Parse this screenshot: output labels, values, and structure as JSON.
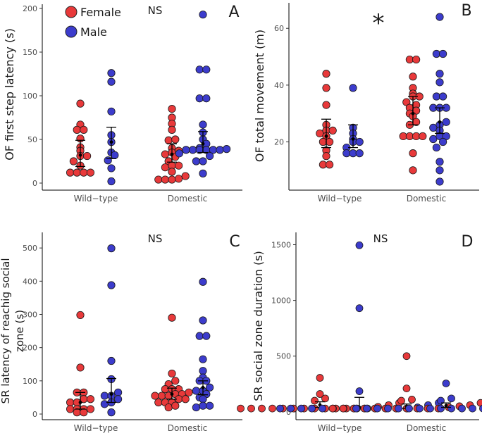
{
  "legend": {
    "female_label": "Female",
    "male_label": "Male"
  },
  "colors": {
    "female": "#e8393a",
    "male": "#3c3ccc",
    "axis": "#000000"
  },
  "chart_data": [
    {
      "panel": "A",
      "type": "scatter",
      "significance": "NS",
      "ylabel": "OF first step latency (s)",
      "ylim": [
        0,
        200
      ],
      "yticks": [
        0,
        50,
        100,
        150,
        200
      ],
      "categories": [
        "Wild−type",
        "Domestic"
      ],
      "groups": [
        {
          "category": "Wild−type",
          "sex": "Female",
          "mean": 32,
          "ci": [
            19,
            49
          ],
          "values": [
            91,
            67,
            61,
            61,
            51,
            41,
            37,
            31,
            31,
            25,
            20,
            12,
            12,
            12,
            12
          ]
        },
        {
          "category": "Wild−type",
          "sex": "Male",
          "mean": 47,
          "ci": [
            28,
            64
          ],
          "values": [
            126,
            116,
            82,
            55,
            47,
            35,
            32,
            26,
            17,
            2
          ]
        },
        {
          "category": "Domestic",
          "sex": "Female",
          "mean": 33,
          "ci": [
            24,
            45
          ],
          "values": [
            85,
            75,
            68,
            61,
            50,
            49,
            40,
            37,
            35,
            33,
            30,
            25,
            20,
            20,
            18,
            13,
            8,
            5,
            4,
            4,
            4
          ]
        },
        {
          "category": "Domestic",
          "sex": "Male",
          "mean": 45,
          "ci": [
            35,
            59
          ],
          "values": [
            193,
            130,
            130,
            97,
            97,
            67,
            58,
            50,
            45,
            40,
            39,
            38,
            38,
            38,
            38,
            38,
            38,
            34,
            31,
            25,
            25,
            11
          ]
        }
      ]
    },
    {
      "panel": "B",
      "type": "scatter",
      "significance": "*",
      "ylabel": "OF total movement (m)",
      "ylim": [
        5,
        67
      ],
      "yticks": [
        20,
        40,
        60
      ],
      "categories": [
        "Wild−type",
        "Domestic"
      ],
      "groups": [
        {
          "category": "Wild−type",
          "sex": "Female",
          "mean": 22,
          "ci": [
            18,
            28
          ],
          "values": [
            44,
            39,
            33,
            26,
            24,
            24,
            23,
            22,
            20,
            20,
            17,
            15,
            12,
            12
          ]
        },
        {
          "category": "Wild−type",
          "sex": "Male",
          "mean": 21,
          "ci": [
            18,
            26
          ],
          "values": [
            39,
            25,
            23,
            21,
            20,
            20,
            18,
            16,
            16,
            16
          ]
        },
        {
          "category": "Domestic",
          "sex": "Female",
          "mean": 30,
          "ci": [
            26,
            36
          ],
          "values": [
            49,
            49,
            43,
            39,
            37,
            36,
            36,
            34,
            33,
            32,
            31,
            30,
            29,
            27,
            26,
            22,
            22,
            22,
            22,
            16,
            10
          ]
        },
        {
          "category": "Domestic",
          "sex": "Male",
          "mean": 27,
          "ci": [
            23,
            32
          ],
          "values": [
            64,
            51,
            51,
            44,
            41,
            36,
            36,
            32,
            32,
            32,
            27,
            26,
            25,
            24,
            22,
            22,
            21,
            20,
            18,
            13,
            10,
            6
          ]
        }
      ]
    },
    {
      "panel": "C",
      "type": "scatter",
      "significance": "NS",
      "ylabel_lines": [
        "SR latency of reachig social",
        "zone (s)"
      ],
      "ylim": [
        0,
        530
      ],
      "yticks": [
        0,
        100,
        200,
        300,
        400,
        500
      ],
      "categories": [
        "Wild−type",
        "Domestic"
      ],
      "groups": [
        {
          "category": "Wild−type",
          "sex": "Female",
          "mean": 35,
          "ci": [
            15,
            65
          ],
          "values": [
            298,
            140,
            65,
            65,
            45,
            45,
            35,
            35,
            15,
            15,
            15,
            15,
            5,
            5
          ]
        },
        {
          "category": "Wild−type",
          "sex": "Male",
          "mean": 60,
          "ci": [
            35,
            107
          ],
          "values": [
            499,
            388,
            160,
            105,
            65,
            55,
            55,
            45,
            35,
            30,
            5
          ]
        },
        {
          "category": "Domestic",
          "sex": "Female",
          "mean": 60,
          "ci": [
            45,
            78
          ],
          "values": [
            290,
            122,
            100,
            90,
            75,
            75,
            75,
            65,
            60,
            60,
            55,
            55,
            55,
            45,
            45,
            35,
            35,
            35,
            25,
            20
          ]
        },
        {
          "category": "Domestic",
          "sex": "Male",
          "mean": 80,
          "ci": [
            58,
            100
          ],
          "values": [
            398,
            282,
            235,
            235,
            165,
            130,
            110,
            100,
            100,
            80,
            70,
            70,
            60,
            50,
            45,
            25,
            25,
            20
          ]
        }
      ]
    },
    {
      "panel": "D",
      "type": "scatter",
      "significance": "NS",
      "ylabel": "SR social zone duration (s)",
      "ylim": [
        -20,
        1560
      ],
      "yticks": [
        0,
        500,
        1000,
        1500
      ],
      "categories": [
        "Wild−type",
        "Domestic"
      ],
      "groups": [
        {
          "category": "Wild−type",
          "sex": "Female",
          "mean": 62,
          "ci": [
            40,
            90
          ],
          "values": [
            305,
            160,
            120,
            100,
            80,
            60,
            45,
            30,
            30,
            30,
            30,
            30,
            30,
            30,
            30,
            30,
            30,
            30,
            30,
            30
          ]
        },
        {
          "category": "Wild−type",
          "sex": "Male",
          "mean": 40,
          "ci": [
            30,
            130
          ],
          "values": [
            1495,
            930,
            185,
            80,
            60,
            40,
            30,
            30,
            30,
            30,
            30,
            30,
            30,
            30,
            30,
            30,
            30,
            30,
            30
          ]
        },
        {
          "category": "Domestic",
          "sex": "Female",
          "mean": 45,
          "ci": [
            30,
            70
          ],
          "values": [
            500,
            210,
            110,
            100,
            80,
            60,
            50,
            40,
            30,
            30,
            30,
            30,
            30,
            30,
            30,
            30,
            30,
            30,
            30
          ]
        },
        {
          "category": "Domestic",
          "sex": "Male",
          "mean": 55,
          "ci": [
            40,
            80
          ],
          "values": [
            255,
            120,
            100,
            80,
            70,
            60,
            50,
            40,
            30,
            30,
            30,
            30,
            30,
            30,
            30,
            30,
            30,
            30,
            30,
            30,
            30
          ]
        }
      ]
    }
  ]
}
